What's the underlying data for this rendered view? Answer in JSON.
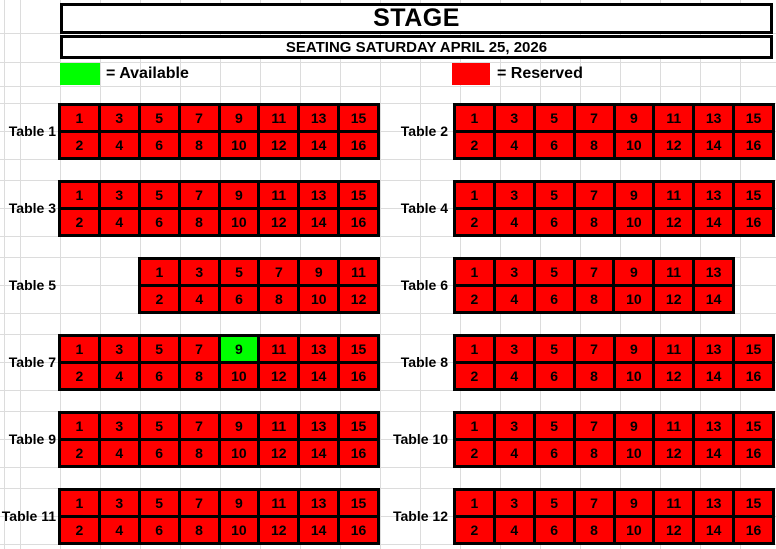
{
  "header": {
    "title": "STAGE",
    "subtitle": "SEATING SATURDAY APRIL 25, 2026"
  },
  "legend": {
    "available_label": "= Available",
    "reserved_label": "= Reserved"
  },
  "colors": {
    "available": "#00ff00",
    "reserved": "#ff0000",
    "border": "#000000",
    "gridline": "#dcdcdc"
  },
  "tables": [
    {
      "label": "Table 1",
      "seat_rows": [
        [
          1,
          3,
          5,
          7,
          9,
          11,
          13,
          15
        ],
        [
          2,
          4,
          6,
          8,
          10,
          12,
          14,
          16
        ]
      ],
      "available_seats": []
    },
    {
      "label": "Table 2",
      "seat_rows": [
        [
          1,
          3,
          5,
          7,
          9,
          11,
          13,
          15
        ],
        [
          2,
          4,
          6,
          8,
          10,
          12,
          14,
          16
        ]
      ],
      "available_seats": []
    },
    {
      "label": "Table 3",
      "seat_rows": [
        [
          1,
          3,
          5,
          7,
          9,
          11,
          13,
          15
        ],
        [
          2,
          4,
          6,
          8,
          10,
          12,
          14,
          16
        ]
      ],
      "available_seats": []
    },
    {
      "label": "Table 4",
      "seat_rows": [
        [
          1,
          3,
          5,
          7,
          9,
          11,
          13,
          15
        ],
        [
          2,
          4,
          6,
          8,
          10,
          12,
          14,
          16
        ]
      ],
      "available_seats": []
    },
    {
      "label": "Table 5",
      "seat_rows": [
        [
          1,
          3,
          5,
          7,
          9,
          11
        ],
        [
          2,
          4,
          6,
          8,
          10,
          12
        ]
      ],
      "available_seats": []
    },
    {
      "label": "Table 6",
      "seat_rows": [
        [
          1,
          3,
          5,
          7,
          9,
          11,
          13
        ],
        [
          2,
          4,
          6,
          8,
          10,
          12,
          14
        ]
      ],
      "available_seats": []
    },
    {
      "label": "Table 7",
      "seat_rows": [
        [
          1,
          3,
          5,
          7,
          9,
          11,
          13,
          15
        ],
        [
          2,
          4,
          6,
          8,
          10,
          12,
          14,
          16
        ]
      ],
      "available_seats": [
        9
      ]
    },
    {
      "label": "Table 8",
      "seat_rows": [
        [
          1,
          3,
          5,
          7,
          9,
          11,
          13,
          15
        ],
        [
          2,
          4,
          6,
          8,
          10,
          12,
          14,
          16
        ]
      ],
      "available_seats": []
    },
    {
      "label": "Table 9",
      "seat_rows": [
        [
          1,
          3,
          5,
          7,
          9,
          11,
          13,
          15
        ],
        [
          2,
          4,
          6,
          8,
          10,
          12,
          14,
          16
        ]
      ],
      "available_seats": []
    },
    {
      "label": "Table 10",
      "seat_rows": [
        [
          1,
          3,
          5,
          7,
          9,
          11,
          13,
          15
        ],
        [
          2,
          4,
          6,
          8,
          10,
          12,
          14,
          16
        ]
      ],
      "available_seats": []
    },
    {
      "label": "Table 11",
      "seat_rows": [
        [
          1,
          3,
          5,
          7,
          9,
          11,
          13,
          15
        ],
        [
          2,
          4,
          6,
          8,
          10,
          12,
          14,
          16
        ]
      ],
      "available_seats": []
    },
    {
      "label": "Table 12",
      "seat_rows": [
        [
          1,
          3,
          5,
          7,
          9,
          11,
          13,
          15
        ],
        [
          2,
          4,
          6,
          8,
          10,
          12,
          14,
          16
        ]
      ],
      "available_seats": []
    }
  ]
}
